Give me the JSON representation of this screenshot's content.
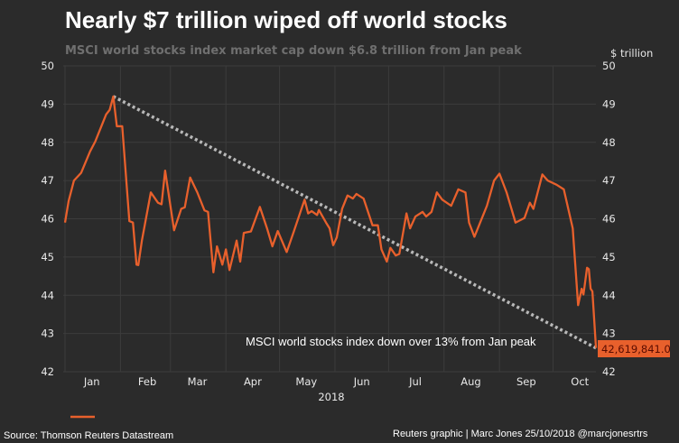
{
  "chart_data": {
    "type": "line",
    "title": "Nearly $7 trillion wiped off world stocks",
    "subtitle": "MSCI world stocks index market cap down $6.8 trillion from Jan peak",
    "ylabel": "$ trillion",
    "xlabel": "2018",
    "ylim": [
      42,
      50
    ],
    "yticks": [
      "50",
      "49",
      "48",
      "47",
      "46",
      "45",
      "44",
      "43",
      "42"
    ],
    "x_unit": "day of year 2018",
    "xlim": [
      0,
      297
    ],
    "months": [
      "Jan",
      "Feb",
      "Mar",
      "Apr",
      "May",
      "Jun",
      "Jul",
      "Aug",
      "Sep",
      "Oct"
    ],
    "grid": true,
    "series": [
      {
        "name": "MSCI world stocks index market cap",
        "color": "#e8602c",
        "points": [
          [
            0,
            45.9
          ],
          [
            2,
            46.46
          ],
          [
            5,
            47.0
          ],
          [
            9,
            47.2
          ],
          [
            14,
            47.76
          ],
          [
            17,
            48.03
          ],
          [
            23,
            48.73
          ],
          [
            25,
            48.85
          ],
          [
            27,
            49.2
          ],
          [
            29,
            48.42
          ],
          [
            32,
            48.42
          ],
          [
            36,
            45.94
          ],
          [
            38,
            45.9
          ],
          [
            40,
            44.8
          ],
          [
            41,
            44.79
          ],
          [
            43,
            45.43
          ],
          [
            48,
            46.69
          ],
          [
            52,
            46.42
          ],
          [
            54,
            46.38
          ],
          [
            56,
            47.26
          ],
          [
            61,
            45.7
          ],
          [
            65,
            46.26
          ],
          [
            67,
            46.3
          ],
          [
            70,
            47.08
          ],
          [
            74,
            46.69
          ],
          [
            78,
            46.22
          ],
          [
            80,
            46.18
          ],
          [
            83,
            44.6
          ],
          [
            85,
            45.28
          ],
          [
            88,
            44.8
          ],
          [
            90,
            45.2
          ],
          [
            92,
            44.66
          ],
          [
            96,
            45.43
          ],
          [
            98,
            44.88
          ],
          [
            100,
            45.63
          ],
          [
            104,
            45.67
          ],
          [
            109,
            46.31
          ],
          [
            113,
            45.75
          ],
          [
            116,
            45.28
          ],
          [
            119,
            45.68
          ],
          [
            124,
            45.13
          ],
          [
            128,
            45.67
          ],
          [
            134,
            46.5
          ],
          [
            136,
            46.14
          ],
          [
            138,
            46.2
          ],
          [
            141,
            46.1
          ],
          [
            142,
            46.23
          ],
          [
            146,
            45.9
          ],
          [
            148,
            45.75
          ],
          [
            150,
            45.31
          ],
          [
            152,
            45.51
          ],
          [
            155,
            46.26
          ],
          [
            158,
            46.61
          ],
          [
            161,
            46.53
          ],
          [
            163,
            46.65
          ],
          [
            167,
            46.53
          ],
          [
            172,
            45.83
          ],
          [
            175,
            45.83
          ],
          [
            177,
            45.2
          ],
          [
            180,
            44.88
          ],
          [
            182,
            45.24
          ],
          [
            185,
            45.04
          ],
          [
            187,
            45.08
          ],
          [
            191,
            46.14
          ],
          [
            193,
            45.75
          ],
          [
            196,
            46.06
          ],
          [
            200,
            46.18
          ],
          [
            202,
            46.06
          ],
          [
            205,
            46.18
          ],
          [
            208,
            46.69
          ],
          [
            211,
            46.5
          ],
          [
            216,
            46.34
          ],
          [
            220,
            46.77
          ],
          [
            224,
            46.69
          ],
          [
            226,
            45.9
          ],
          [
            229,
            45.53
          ],
          [
            236,
            46.34
          ],
          [
            240,
            47.0
          ],
          [
            243,
            47.18
          ],
          [
            247,
            46.69
          ],
          [
            252,
            45.9
          ],
          [
            257,
            46.02
          ],
          [
            260,
            46.42
          ],
          [
            262,
            46.26
          ],
          [
            267,
            47.16
          ],
          [
            270,
            47.0
          ],
          [
            275,
            46.89
          ],
          [
            279,
            46.77
          ],
          [
            284,
            45.75
          ],
          [
            287,
            43.74
          ],
          [
            289,
            44.17
          ],
          [
            290,
            44.02
          ],
          [
            292,
            44.72
          ],
          [
            293,
            44.68
          ],
          [
            294,
            44.17
          ],
          [
            295,
            44.1
          ],
          [
            297,
            42.62
          ]
        ]
      }
    ],
    "trendline": {
      "from": [
        27,
        49.2
      ],
      "to": [
        297,
        42.62
      ],
      "color": "#b8b8b8",
      "style": "dotted"
    },
    "last_value_label": "42,619,841.0",
    "annotation": "MSCI world stocks index down over 13% from Jan peak",
    "legend": "bottom-left"
  },
  "footer": {
    "source": "Source: Thomson Reuters Datastream",
    "credit": "Reuters graphic | Marc Jones 25/10/2018 @marcjonesrtrs"
  }
}
